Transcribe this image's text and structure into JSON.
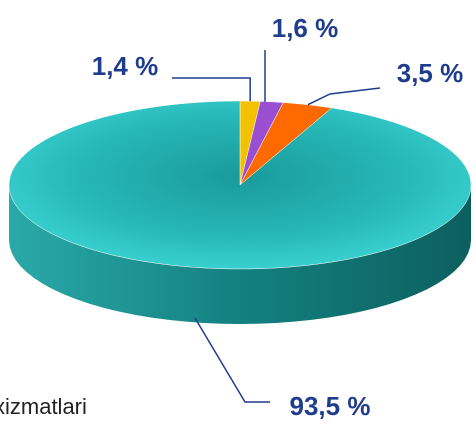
{
  "chart_data": {
    "type": "pie",
    "categories": [
      null,
      null,
      null,
      null
    ],
    "values": [
      1.4,
      1.6,
      3.5,
      93.5
    ],
    "value_labels": [
      "1,4 %",
      "1,6 %",
      "3,5 %",
      "93,5 %"
    ],
    "colors": [
      "#f2c200",
      "#9a4fd3",
      "#ff6a00",
      "#2cc6c6"
    ],
    "annotation": "xizmatlari"
  }
}
